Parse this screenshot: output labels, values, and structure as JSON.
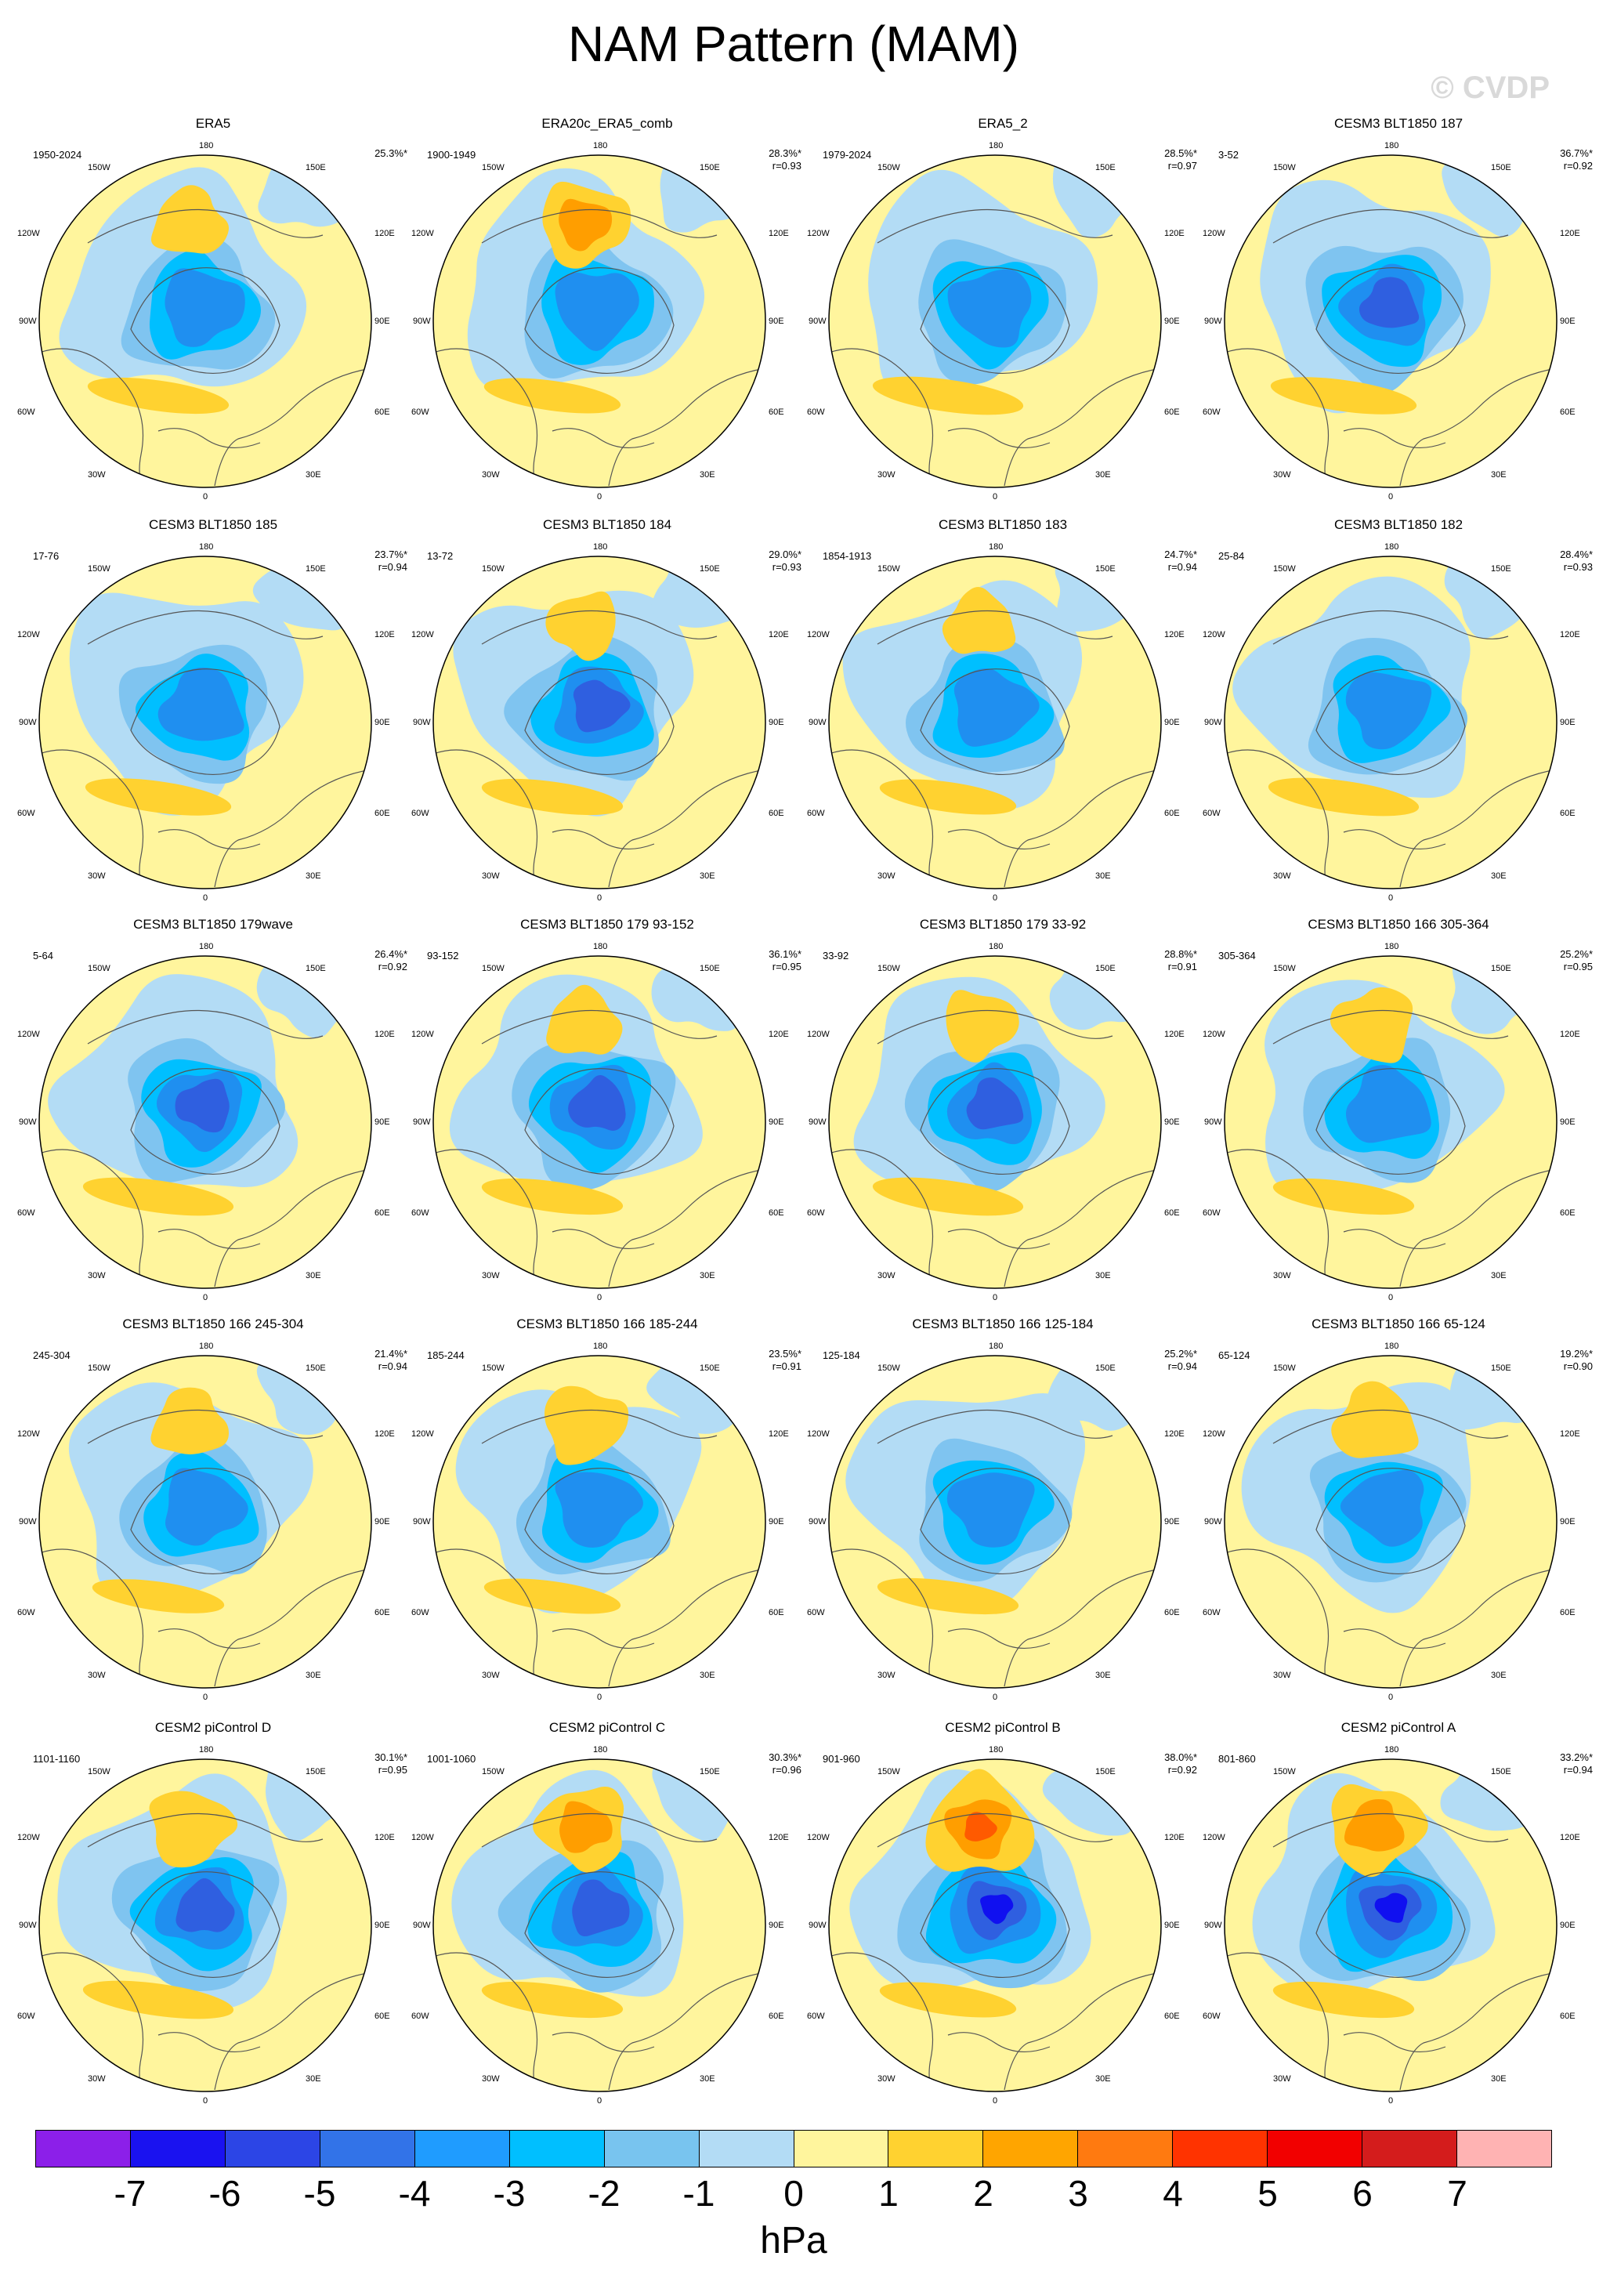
{
  "title": "NAM Pattern (MAM)",
  "copyright": "© CVDP",
  "lon_labels": {
    "top": "180",
    "bottom": "0",
    "upper_left": "150W",
    "upper_right": "150E",
    "left_upper": "120W",
    "right_upper": "120E",
    "left": "90W",
    "right": "90E",
    "left_lower": "60W",
    "right_lower": "60E",
    "lower_left": "30W",
    "lower_right": "30E"
  },
  "colors": {
    "fill_positive_1": "#fff59d",
    "fill_positive_2": "#ffd230",
    "fill_positive_3": "#ff9e00",
    "fill_positive_4": "#ff5a00",
    "fill_negative_1": "#b3dcf5",
    "fill_negative_2": "#7fc4f0",
    "fill_negative_3": "#00bfff",
    "fill_negative_4": "#1f8ff0",
    "fill_negative_5": "#2f5fe0",
    "fill_negative_6": "#1010f0",
    "coast": "#555555"
  },
  "panels": [
    {
      "title": "ERA5",
      "years": "1950-2024",
      "pct": "25.3%*",
      "r": "",
      "strength": 0.45,
      "pacific": 0.2,
      "atlantic": 0.35
    },
    {
      "title": "ERA20c_ERA5_comb",
      "years": "1900-1949",
      "pct": "28.3%*",
      "r": "r=0.93",
      "strength": 0.5,
      "pacific": 0.45,
      "atlantic": 0.3
    },
    {
      "title": "ERA5_2",
      "years": "1979-2024",
      "pct": "28.5%*",
      "r": "r=0.97",
      "strength": 0.5,
      "pacific": 0.0,
      "atlantic": 0.45
    },
    {
      "title": "CESM3 BLT1850 187",
      "years": "3-52",
      "pct": "36.7%*",
      "r": "r=0.92",
      "strength": 0.6,
      "pacific": 0.0,
      "atlantic": 0.4
    },
    {
      "title": "CESM3 BLT1850 185",
      "years": "17-76",
      "pct": "23.7%*",
      "r": "r=0.94",
      "strength": 0.45,
      "pacific": 0.0,
      "atlantic": 0.4
    },
    {
      "title": "CESM3 BLT1850 184",
      "years": "13-72",
      "pct": "29.0%*",
      "r": "r=0.93",
      "strength": 0.55,
      "pacific": 0.15,
      "atlantic": 0.35
    },
    {
      "title": "CESM3 BLT1850 183",
      "years": "1854-1913",
      "pct": "24.7%*",
      "r": "r=0.94",
      "strength": 0.5,
      "pacific": 0.15,
      "atlantic": 0.3
    },
    {
      "title": "CESM3 BLT1850 182",
      "years": "25-84",
      "pct": "28.4%*",
      "r": "r=0.93",
      "strength": 0.5,
      "pacific": 0.0,
      "atlantic": 0.45
    },
    {
      "title": "CESM3 BLT1850 179wave",
      "years": "5-64",
      "pct": "26.4%*",
      "r": "r=0.92",
      "strength": 0.55,
      "pacific": 0.0,
      "atlantic": 0.45
    },
    {
      "title": "CESM3 BLT1850 179 93-152",
      "years": "93-152",
      "pct": "36.1%*",
      "r": "r=0.95",
      "strength": 0.65,
      "pacific": 0.2,
      "atlantic": 0.35
    },
    {
      "title": "CESM3 BLT1850 179 33-92",
      "years": "33-92",
      "pct": "28.8%*",
      "r": "r=0.91",
      "strength": 0.55,
      "pacific": 0.2,
      "atlantic": 0.45
    },
    {
      "title": "CESM3 BLT1850 166 305-364",
      "years": "305-364",
      "pct": "25.2%*",
      "r": "r=0.95",
      "strength": 0.5,
      "pacific": 0.3,
      "atlantic": 0.35
    },
    {
      "title": "CESM3 BLT1850 166 245-304",
      "years": "245-304",
      "pct": "21.4%*",
      "r": "r=0.94",
      "strength": 0.45,
      "pacific": 0.2,
      "atlantic": 0.25
    },
    {
      "title": "CESM3 BLT1850 166 185-244",
      "years": "185-244",
      "pct": "23.5%*",
      "r": "r=0.91",
      "strength": 0.5,
      "pacific": 0.35,
      "atlantic": 0.3
    },
    {
      "title": "CESM3 BLT1850 166 125-184",
      "years": "125-184",
      "pct": "25.2%*",
      "r": "r=0.94",
      "strength": 0.5,
      "pacific": 0.0,
      "atlantic": 0.35
    },
    {
      "title": "CESM3 BLT1850 166 65-124",
      "years": "65-124",
      "pct": "19.2%*",
      "r": "r=0.90",
      "strength": 0.45,
      "pacific": 0.35,
      "atlantic": 0.0
    },
    {
      "title": "CESM2 piControl D",
      "years": "1101-1160",
      "pct": "30.1%*",
      "r": "r=0.95",
      "strength": 0.65,
      "pacific": 0.35,
      "atlantic": 0.45
    },
    {
      "title": "CESM2 piControl C",
      "years": "1001-1060",
      "pct": "30.3%*",
      "r": "r=0.96",
      "strength": 0.7,
      "pacific": 0.45,
      "atlantic": 0.35
    },
    {
      "title": "CESM2 piControl B",
      "years": "901-960",
      "pct": "38.0%*",
      "r": "r=0.92",
      "strength": 0.8,
      "pacific": 0.75,
      "atlantic": 0.3
    },
    {
      "title": "CESM2 piControl A",
      "years": "801-860",
      "pct": "33.2%*",
      "r": "r=0.94",
      "strength": 0.8,
      "pacific": 0.55,
      "atlantic": 0.35
    }
  ],
  "colorbar": {
    "colors": [
      "#8c1fe9",
      "#1a12f0",
      "#2c45e6",
      "#3273e8",
      "#1f9cff",
      "#00bfff",
      "#78c4ef",
      "#b3dcf5",
      "#fff59d",
      "#ffd230",
      "#ffa500",
      "#ff7a10",
      "#ff3300",
      "#f20000",
      "#d41c1c",
      "#ffb3b3"
    ],
    "ticks": [
      "-7",
      "-6",
      "-5",
      "-4",
      "-3",
      "-2",
      "-1",
      "0",
      "1",
      "2",
      "3",
      "4",
      "5",
      "6",
      "7"
    ],
    "units": "hPa"
  }
}
